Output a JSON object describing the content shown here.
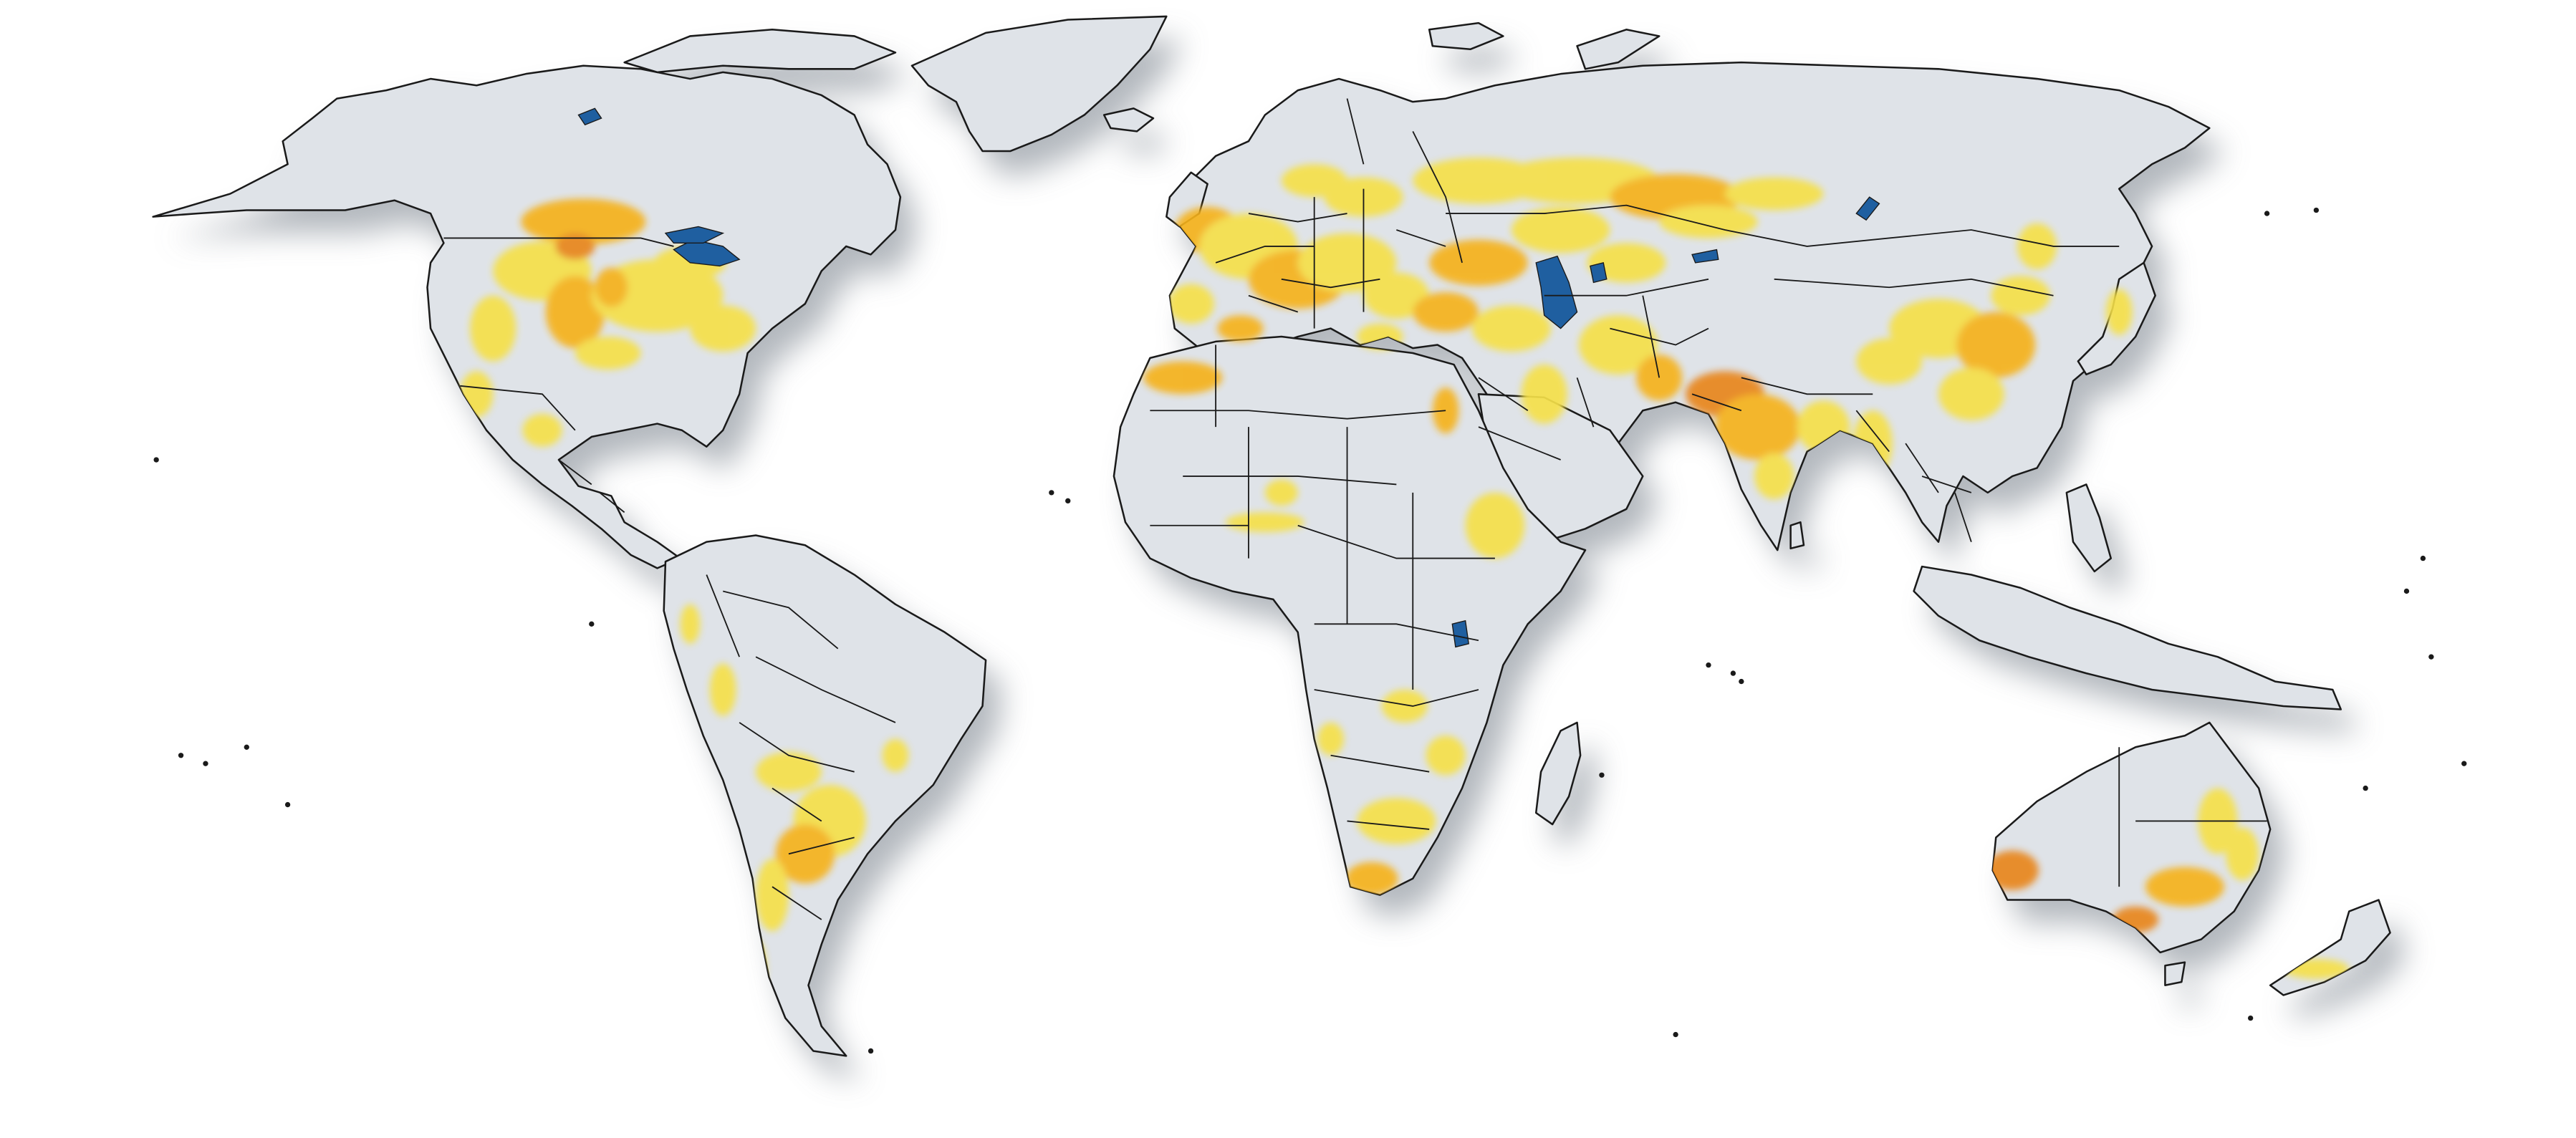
{
  "map": {
    "projection": "world-robinson-like",
    "legend_shown": false,
    "title_shown": false,
    "colors": {
      "background": "#ffffff",
      "land": "#dfe3e8",
      "border": "#1a1a1a",
      "shadow": "#9aa0a8",
      "water": "#1f5fa0",
      "low_intensity": "#f5e04a",
      "medium_intensity": "#f5b21e",
      "high_intensity": "#e8861a"
    }
  }
}
